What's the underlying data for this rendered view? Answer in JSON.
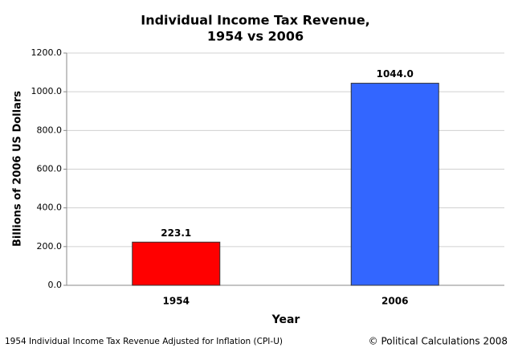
{
  "chart_data": {
    "type": "bar",
    "title": [
      "Individual Income Tax Revenue,",
      "1954 vs 2006"
    ],
    "x_label": "Year",
    "y_label": "Billions of 2006 US Dollars",
    "categories": [
      "1954",
      "2006"
    ],
    "values": [
      223.1,
      1044
    ],
    "value_labels": [
      "223.1",
      "1044.0"
    ],
    "colors": [
      "#ff0000",
      "#3366ff"
    ],
    "ylim": [
      0,
      1200
    ],
    "yticks": [
      {
        "value": 0,
        "label": "0.0"
      },
      {
        "value": 200,
        "label": "200.0"
      },
      {
        "value": 400,
        "label": "400.0"
      },
      {
        "value": 600,
        "label": "600.0"
      },
      {
        "value": 800,
        "label": "800.0"
      },
      {
        "value": 1000,
        "label": "1000.0"
      },
      {
        "value": 1200,
        "label": "1200.0"
      }
    ],
    "grid": true,
    "footnote": "1954 Individual Income Tax Revenue Adjusted for Inflation (CPI-U)",
    "credit": "© Political Calculations 2008"
  }
}
